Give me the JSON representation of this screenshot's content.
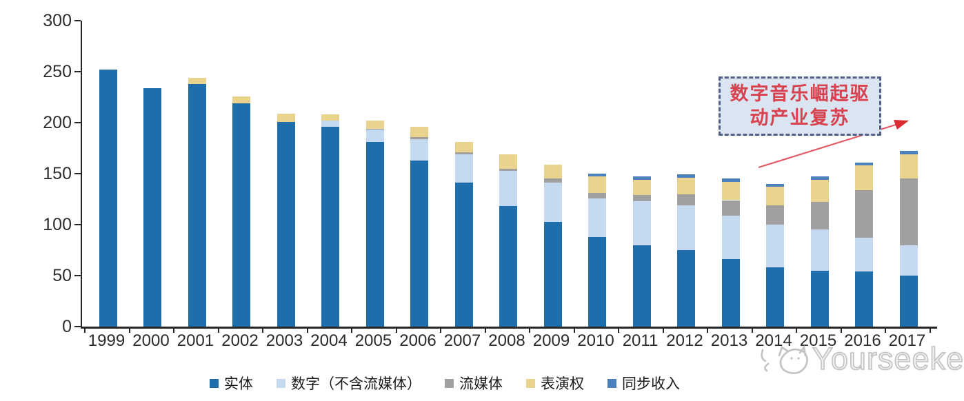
{
  "watermark": {
    "text": "Yourseeker",
    "logo": "cat-face"
  },
  "annotation": {
    "line1": "数字音乐崛起驱",
    "line2": "动产业复苏",
    "text_color": "#d8414e",
    "box_fill": "#dbe5f2",
    "border_color": "#515f86",
    "arrow_color": "#e45964"
  },
  "axis_colors": {
    "line": "#262626",
    "label": "#2b2b2b"
  },
  "chart_data": {
    "type": "bar",
    "stacked": true,
    "title": "",
    "xlabel": "",
    "ylabel": "",
    "ylim": [
      0,
      300
    ],
    "yticks": [
      0,
      50,
      100,
      150,
      200,
      250,
      300
    ],
    "grid": false,
    "legend_position": "bottom",
    "categories": [
      "1999",
      "2000",
      "2001",
      "2002",
      "2003",
      "2004",
      "2005",
      "2006",
      "2007",
      "2008",
      "2009",
      "2010",
      "2011",
      "2012",
      "2013",
      "2014",
      "2015",
      "2016",
      "2017"
    ],
    "series": [
      {
        "name": "实体",
        "color": "#1f6eac",
        "values": [
          252,
          234,
          238,
          219,
          201,
          196,
          181,
          163,
          141,
          118,
          103,
          88,
          80,
          75,
          66,
          58,
          55,
          54,
          50
        ]
      },
      {
        "name": "数字（不含流媒体）",
        "color": "#c5daf0",
        "values": [
          0,
          0,
          0,
          0,
          0,
          6,
          12,
          21,
          28,
          35,
          38,
          38,
          43,
          44,
          43,
          42,
          40,
          33,
          30
        ]
      },
      {
        "name": "流媒体",
        "color": "#a0a0a0",
        "values": [
          0,
          0,
          0,
          0,
          0,
          0,
          1,
          2,
          2,
          2,
          4,
          5,
          6,
          11,
          15,
          19,
          27,
          47,
          65
        ]
      },
      {
        "name": "表演权",
        "color": "#e9d38d",
        "values": [
          0,
          0,
          6,
          7,
          8,
          6,
          8,
          10,
          10,
          14,
          14,
          16,
          15,
          16,
          18,
          18,
          22,
          24,
          24
        ]
      },
      {
        "name": "同步收入",
        "color": "#4a80bd",
        "values": [
          0,
          0,
          0,
          0,
          0,
          0,
          0,
          0,
          0,
          0,
          0,
          3,
          3,
          3,
          3,
          3,
          3,
          3,
          3
        ]
      }
    ]
  }
}
